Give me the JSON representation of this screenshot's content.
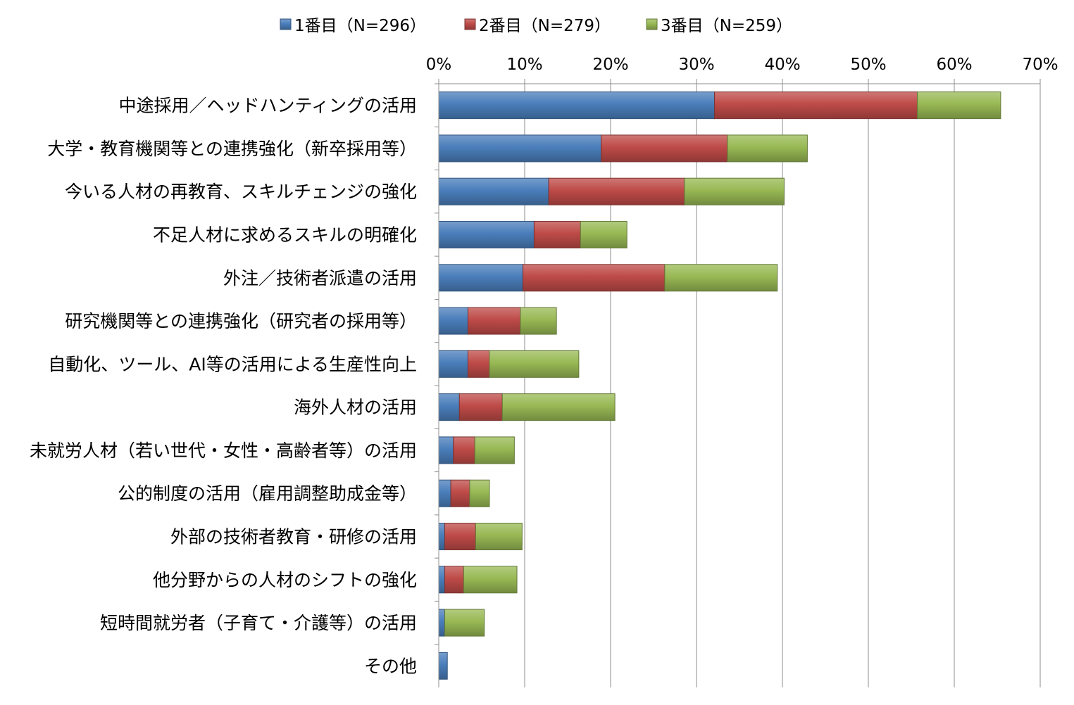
{
  "chart_data": {
    "type": "bar",
    "orientation": "horizontal",
    "stacked": true,
    "xlim": [
      0,
      70
    ],
    "x_ticks": [
      "0%",
      "10%",
      "20%",
      "30%",
      "40%",
      "50%",
      "60%",
      "70%"
    ],
    "grid": "vertical",
    "legend_position": "top",
    "categories": [
      "中途採用／ヘッドハンティングの活用",
      "大学・教育機関等との連携強化（新卒採用等）",
      "今いる人材の再教育、スキルチェンジの強化",
      "不足人材に求めるスキルの明確化",
      "外注／技術者派遣の活用",
      "研究機関等との連携強化（研究者の採用等）",
      "自動化、ツール、AI等の活用による生産性向上",
      "海外人材の活用",
      "未就労人材（若い世代・女性・高齢者等）の活用",
      "公的制度の活用（雇用調整助成金等）",
      "外部の技術者教育・研修の活用",
      "他分野からの人材のシフトの強化",
      "短時間就労者（子育て・介護等）の活用",
      "その他"
    ],
    "series": [
      {
        "name": "1番目（N=296）",
        "color": "#4a7ebb",
        "values": [
          32.1,
          18.9,
          12.8,
          11.1,
          9.8,
          3.4,
          3.4,
          2.4,
          1.7,
          1.4,
          0.7,
          0.7,
          0.7,
          1.0
        ]
      },
      {
        "name": "2番目（N=279）",
        "color": "#be4b48",
        "values": [
          23.6,
          14.7,
          15.8,
          5.4,
          16.5,
          6.1,
          2.5,
          5.0,
          2.5,
          2.2,
          3.6,
          2.2,
          0.0,
          0.0
        ]
      },
      {
        "name": "3番目（N=259）",
        "color": "#98b954",
        "values": [
          9.7,
          9.3,
          11.6,
          5.4,
          13.1,
          4.2,
          10.4,
          13.1,
          4.6,
          2.3,
          5.4,
          6.2,
          4.6,
          0.0
        ]
      }
    ]
  }
}
